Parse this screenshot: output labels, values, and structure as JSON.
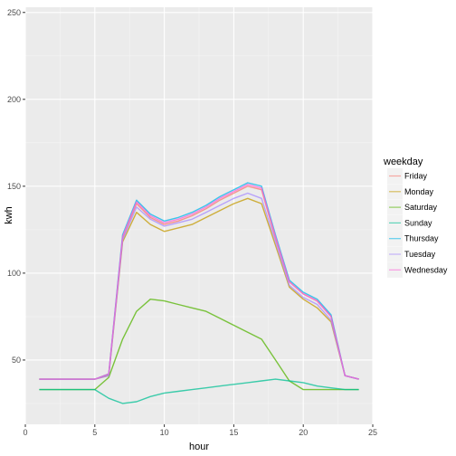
{
  "chart_data": {
    "type": "line",
    "xlabel": "hour",
    "ylabel": "kwh",
    "xlim": [
      0,
      25
    ],
    "ylim": [
      13,
      253
    ],
    "x_ticks": [
      0,
      5,
      10,
      15,
      20,
      25
    ],
    "y_ticks": [
      50,
      100,
      150,
      200,
      250
    ],
    "grid": true,
    "background": "#ebebeb",
    "legend": {
      "title": "weekday",
      "position": "right",
      "entries": [
        {
          "name": "Friday",
          "color": "#F8766D"
        },
        {
          "name": "Monday",
          "color": "#C49A00"
        },
        {
          "name": "Saturday",
          "color": "#53B400"
        },
        {
          "name": "Sunday",
          "color": "#00C094"
        },
        {
          "name": "Thursday",
          "color": "#00B6EB"
        },
        {
          "name": "Tuesday",
          "color": "#A58AFF"
        },
        {
          "name": "Wednesday",
          "color": "#FB61D7"
        }
      ]
    },
    "x": [
      1,
      5,
      6,
      7,
      8,
      9,
      10,
      11,
      12,
      13,
      14,
      15,
      16,
      17,
      18,
      19,
      20,
      21,
      22,
      23,
      24
    ],
    "series": [
      {
        "name": "Friday",
        "values": [
          39,
          39,
          42,
          120,
          140,
          132,
          128,
          130,
          133,
          137,
          142,
          146,
          150,
          148,
          120,
          95,
          88,
          84,
          75,
          41,
          39
        ]
      },
      {
        "name": "Monday",
        "values": [
          39,
          39,
          41,
          118,
          135,
          128,
          124,
          126,
          128,
          132,
          136,
          140,
          143,
          140,
          116,
          92,
          85,
          80,
          72,
          41,
          39
        ]
      },
      {
        "name": "Saturday",
        "values": [
          33,
          33,
          40,
          62,
          78,
          85,
          84,
          82,
          80,
          78,
          74,
          70,
          66,
          62,
          50,
          38,
          33,
          33,
          33,
          33,
          33
        ]
      },
      {
        "name": "Sunday",
        "values": [
          33,
          33,
          28,
          25,
          26,
          29,
          31,
          32,
          33,
          34,
          35,
          36,
          37,
          38,
          39,
          38,
          37,
          35,
          34,
          33,
          33
        ]
      },
      {
        "name": "Thursday",
        "values": [
          39,
          39,
          42,
          122,
          142,
          134,
          130,
          132,
          135,
          139,
          144,
          148,
          152,
          150,
          122,
          96,
          89,
          85,
          76,
          41,
          39
        ]
      },
      {
        "name": "Tuesday",
        "values": [
          39,
          39,
          41,
          119,
          138,
          131,
          127,
          129,
          131,
          135,
          139,
          143,
          146,
          143,
          118,
          93,
          86,
          82,
          73,
          41,
          39
        ]
      },
      {
        "name": "Wednesday",
        "values": [
          39,
          39,
          42,
          121,
          141,
          133,
          129,
          131,
          134,
          138,
          143,
          147,
          151,
          149,
          121,
          95,
          88,
          84,
          75,
          41,
          39
        ]
      }
    ]
  }
}
